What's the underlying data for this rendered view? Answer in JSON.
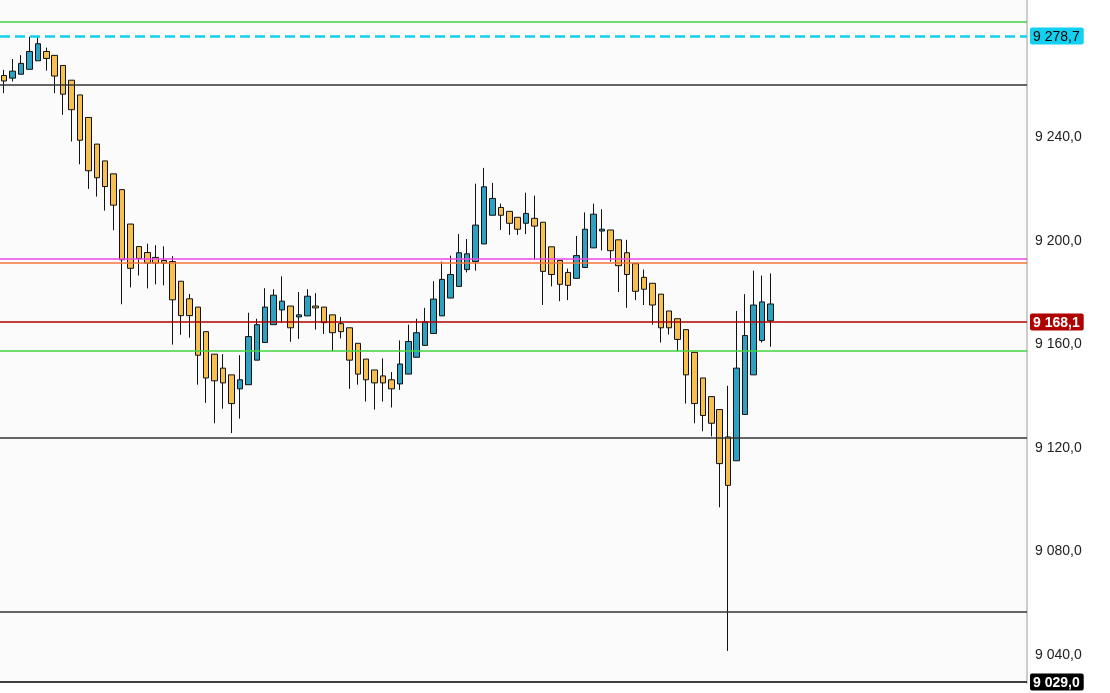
{
  "chart_data": {
    "type": "candlestick",
    "categories": [
      null,
      null,
      null,
      null,
      null,
      null,
      null,
      null,
      null,
      null,
      null,
      null,
      null,
      null,
      null,
      null,
      null,
      null,
      null,
      null,
      null,
      null,
      null,
      null,
      null,
      null,
      null,
      null,
      null,
      null,
      null,
      null,
      null,
      null,
      null,
      null,
      null,
      null,
      null,
      null,
      null,
      null,
      null,
      null,
      null,
      null,
      null,
      null,
      null,
      null,
      null,
      null,
      null,
      null,
      null,
      null,
      null,
      null,
      null,
      null,
      null,
      null,
      null,
      null,
      null,
      null,
      null,
      null,
      null,
      null,
      null,
      null,
      null,
      null,
      null,
      null,
      null,
      null,
      null,
      null,
      null,
      null,
      null,
      null,
      null,
      null,
      null,
      null,
      null,
      null,
      null,
      null,
      null,
      null,
      null,
      null,
      null,
      null,
      null,
      null,
      null,
      null,
      null,
      null,
      null,
      null,
      null,
      null,
      null,
      null,
      null,
      null,
      null,
      null,
      null,
      null,
      null,
      null,
      null,
      null,
      null,
      null
    ],
    "ohlc": [
      [
        9263.4,
        9265.6,
        9256.6,
        9261.3
      ],
      [
        9262.4,
        9269.8,
        9261.1,
        9265.1
      ],
      [
        9263.9,
        9271.3,
        9263.9,
        9268.1
      ],
      [
        9265.8,
        9278.4,
        9265.8,
        9272.7
      ],
      [
        9269.1,
        9278.7,
        9269.1,
        9275.7
      ],
      [
        9272.7,
        9274.2,
        9265.3,
        9270.0
      ],
      [
        9271.2,
        9271.2,
        9256.6,
        9263.2
      ],
      [
        9267.3,
        9267.3,
        9248.2,
        9256.2
      ],
      [
        9261.6,
        9261.6,
        9237.9,
        9250.2
      ],
      [
        9255.9,
        9255.9,
        9229.1,
        9238.4
      ],
      [
        9247.2,
        9247.2,
        9219.6,
        9226.6
      ],
      [
        9236.9,
        9236.9,
        9216.6,
        9223.9
      ],
      [
        9230.4,
        9230.4,
        9211.2,
        9220.5
      ],
      [
        9225.4,
        9225.4,
        9203.6,
        9213.3
      ],
      [
        9219.3,
        9219.3,
        9175.0,
        9192.2
      ],
      [
        9206.0,
        9206.0,
        9181.5,
        9188.9
      ],
      [
        9197.3,
        9197.3,
        9186.1,
        9192.7
      ],
      [
        9195.0,
        9198.4,
        9181.1,
        9190.9
      ],
      [
        9193.1,
        9197.8,
        9182.7,
        9190.9
      ],
      [
        9191.9,
        9197.4,
        9182.3,
        9190.9
      ],
      [
        9191.5,
        9193.6,
        9159.4,
        9176.7
      ],
      [
        9183.9,
        9183.9,
        9163.2,
        9170.6
      ],
      [
        9177.1,
        9179.0,
        9162.1,
        9170.6
      ],
      [
        9173.9,
        9173.9,
        9143.9,
        9155.3
      ],
      [
        9164.4,
        9164.4,
        9136.9,
        9146.5
      ],
      [
        9155.7,
        9155.7,
        9129.0,
        9145.4
      ],
      [
        9150.3,
        9155.7,
        9134.6,
        9144.6
      ],
      [
        9147.7,
        9147.7,
        9125.2,
        9136.6
      ],
      [
        9142.3,
        9155.3,
        9130.8,
        9145.8
      ],
      [
        9143.9,
        9171.7,
        9143.9,
        9162.5
      ],
      [
        9153.4,
        9169.4,
        9153.4,
        9167.1
      ],
      [
        9160.2,
        9181.2,
        9160.2,
        9173.9
      ],
      [
        9167.1,
        9180.8,
        9167.1,
        9178.5
      ],
      [
        9172.8,
        9185.8,
        9167.9,
        9176.2
      ],
      [
        9174.3,
        9174.3,
        9160.5,
        9165.9
      ],
      [
        9170.1,
        9179.7,
        9161.6,
        9170.9
      ],
      [
        9170.5,
        9180.8,
        9170.5,
        9178.1
      ],
      [
        9174.3,
        9179.3,
        9165.2,
        9173.6
      ],
      [
        9173.9,
        9173.9,
        9163.5,
        9167.9
      ],
      [
        9170.9,
        9170.9,
        9156.8,
        9164.0
      ],
      [
        9167.5,
        9170.1,
        9161.8,
        9164.4
      ],
      [
        9165.9,
        9165.9,
        9142.3,
        9153.4
      ],
      [
        9159.9,
        9159.9,
        9143.9,
        9148.0
      ],
      [
        9153.8,
        9153.8,
        9137.4,
        9145.8
      ],
      [
        9149.6,
        9149.6,
        9134.3,
        9144.6
      ],
      [
        9147.3,
        9154.1,
        9137.4,
        9144.6
      ],
      [
        9145.8,
        9148.8,
        9135.1,
        9142.3
      ],
      [
        9144.2,
        9161.0,
        9141.9,
        9151.9
      ],
      [
        9148.0,
        9167.1,
        9148.0,
        9160.6
      ],
      [
        9154.5,
        9169.4,
        9154.5,
        9164.0
      ],
      [
        9159.1,
        9173.6,
        9159.1,
        9168.2
      ],
      [
        9163.7,
        9183.9,
        9163.7,
        9177.0
      ],
      [
        9170.5,
        9191.5,
        9170.5,
        9184.6
      ],
      [
        9177.4,
        9193.8,
        9177.4,
        9186.5
      ],
      [
        9181.9,
        9202.1,
        9181.9,
        9194.9
      ],
      [
        9188.4,
        9200.2,
        9187.3,
        9194.5
      ],
      [
        9191.5,
        9221.6,
        9188.0,
        9205.6
      ],
      [
        9198.3,
        9227.7,
        9198.3,
        9220.4
      ],
      [
        9209.4,
        9221.9,
        9209.4,
        9215.9
      ],
      [
        9212.4,
        9213.9,
        9203.7,
        9209.4
      ],
      [
        9210.9,
        9210.9,
        9201.8,
        9206.3
      ],
      [
        9208.6,
        9208.6,
        9201.8,
        9204.0
      ],
      [
        9206.3,
        9218.1,
        9202.1,
        9210.1
      ],
      [
        9208.2,
        9217.0,
        9192.2,
        9205.2
      ],
      [
        9206.7,
        9206.7,
        9174.7,
        9187.7
      ],
      [
        9197.2,
        9197.2,
        9181.9,
        9186.5
      ],
      [
        9191.9,
        9191.9,
        9176.2,
        9182.7
      ],
      [
        9187.3,
        9188.8,
        9176.6,
        9182.3
      ],
      [
        9185.0,
        9201.4,
        9185.0,
        9193.8
      ],
      [
        9189.2,
        9210.5,
        9189.2,
        9204.0
      ],
      [
        9196.8,
        9213.9,
        9196.8,
        9209.8
      ],
      [
        9203.3,
        9211.7,
        9195.8,
        9204.0
      ],
      [
        9203.7,
        9203.7,
        9191.5,
        9195.7
      ],
      [
        9199.9,
        9199.9,
        9179.7,
        9189.9
      ],
      [
        9194.9,
        9199.9,
        9173.6,
        9186.5
      ],
      [
        9190.7,
        9190.7,
        9176.6,
        9180.0
      ],
      [
        9185.4,
        9188.4,
        9174.7,
        9180.8
      ],
      [
        9183.1,
        9183.1,
        9167.1,
        9174.7
      ],
      [
        9178.9,
        9178.9,
        9160.2,
        9165.9
      ],
      [
        9172.4,
        9172.4,
        9163.3,
        9165.9
      ],
      [
        9169.4,
        9169.4,
        9156.8,
        9161.4
      ],
      [
        9165.2,
        9165.2,
        9136.6,
        9147.7
      ],
      [
        9156.4,
        9156.4,
        9129.0,
        9136.6
      ],
      [
        9146.5,
        9146.5,
        9125.9,
        9132.0
      ],
      [
        9139.3,
        9139.3,
        9123.9,
        9129.0
      ],
      [
        9134.3,
        9134.3,
        9096.5,
        9113.4
      ],
      [
        9123.7,
        9143.5,
        9041.0,
        9105.0
      ],
      [
        9114.5,
        9172.4,
        9114.5,
        9150.3
      ],
      [
        9132.4,
        9178.9,
        9132.4,
        9162.9
      ],
      [
        9147.7,
        9188.0,
        9147.7,
        9174.7
      ],
      [
        9161.0,
        9186.1,
        9160.2,
        9175.9
      ],
      [
        9168.6,
        9186.9,
        9158.6,
        9175.1
      ],
      null,
      null,
      null,
      null,
      null,
      null,
      null,
      null,
      null,
      null,
      null,
      null,
      null,
      null,
      null,
      null,
      null,
      null,
      null,
      null,
      null,
      null,
      null,
      null,
      null,
      null,
      null,
      null,
      null,
      null
    ],
    "colors": [
      "#f7bf50",
      "#2ea0c2",
      "#2ea0c2",
      "#2ea0c2",
      "#2ea0c2",
      "#f7bf50",
      "#f7bf50",
      "#f7bf50",
      "#f7bf50",
      "#f7bf50",
      "#f7bf50",
      "#f7bf50",
      "#f7bf50",
      "#f7bf50",
      "#f7bf50",
      "#f7bf50",
      "#f7bf50",
      "#f7bf50",
      "#f7bf50",
      "#f7bf50",
      "#f7bf50",
      "#f7bf50",
      "#f7bf50",
      "#f7bf50",
      "#f7bf50",
      "#f7bf50",
      "#f7bf50",
      "#f7bf50",
      "#2ea0c2",
      "#2ea0c2",
      "#2ea0c2",
      "#2ea0c2",
      "#2ea0c2",
      "#2ea0c2",
      "#f7bf50",
      "#2ea0c2",
      "#2ea0c2",
      "#f7bf50",
      "#f7bf50",
      "#f7bf50",
      "#f7bf50",
      "#f7bf50",
      "#f7bf50",
      "#f7bf50",
      "#f7bf50",
      "#f7bf50",
      "#f7bf50",
      "#2ea0c2",
      "#2ea0c2",
      "#2ea0c2",
      "#2ea0c2",
      "#2ea0c2",
      "#2ea0c2",
      "#2ea0c2",
      "#2ea0c2",
      "#2ea0c2",
      "#2ea0c2",
      "#2ea0c2",
      "#2ea0c2",
      "#f7bf50",
      "#f7bf50",
      "#f7bf50",
      "#2ea0c2",
      "#f7bf50",
      "#f7bf50",
      "#f7bf50",
      "#f7bf50",
      "#f7bf50",
      "#2ea0c2",
      "#2ea0c2",
      "#2ea0c2",
      "#2ea0c2",
      "#f7bf50",
      "#f7bf50",
      "#f7bf50",
      "#f7bf50",
      "#f7bf50",
      "#f7bf50",
      "#f7bf50",
      "#f7bf50",
      "#f7bf50",
      "#f7bf50",
      "#f7bf50",
      "#f7bf50",
      "#f7bf50",
      "#f7bf50",
      "#f7bf50",
      "#2ea0c2",
      "#2ea0c2",
      "#2ea0c2",
      "#2ea0c2",
      "#2ea0c2",
      null,
      null,
      null,
      null,
      null,
      null,
      null,
      null,
      null,
      null,
      null,
      null,
      null,
      null,
      null,
      null,
      null,
      null,
      null,
      null,
      null,
      null,
      null,
      null,
      null,
      null,
      null,
      null,
      null,
      null
    ],
    "ylim": [
      9028.6,
      9292.6
    ],
    "yticks": [
      {
        "value": 9040,
        "label": "9 040,0"
      },
      {
        "value": 9080,
        "label": "9 080,0"
      },
      {
        "value": 9120,
        "label": "9 120,0"
      },
      {
        "value": 9160,
        "label": "9 160,0"
      },
      {
        "value": 9200,
        "label": "9 200,0"
      },
      {
        "value": 9240,
        "label": "9 240,0"
      }
    ],
    "ref_lines": [
      {
        "axis": "y",
        "value": 9284.2,
        "color": "#3fd63f"
      },
      {
        "axis": "y",
        "value": 9278.7,
        "label": "9 278,7",
        "color": "#12d0f0",
        "line_style": "dashed"
      },
      {
        "axis": "y",
        "value": 9260,
        "color": "#333333"
      },
      {
        "axis": "y",
        "value": 9192.4,
        "color": "#ee44ee"
      },
      {
        "axis": "y",
        "value": 9191.2,
        "color": "#f5743a"
      },
      {
        "axis": "y",
        "value": 9168.1,
        "label": "9 168,1",
        "color": "#b00000"
      },
      {
        "axis": "y",
        "value": 9157,
        "color": "#3fd63f"
      },
      {
        "axis": "y",
        "value": 9123.4,
        "color": "#333333"
      },
      {
        "axis": "y",
        "value": 9056,
        "color": "#333333"
      },
      {
        "axis": "y",
        "value": 9029.0,
        "label": "9 029,0",
        "color": "#000000"
      }
    ],
    "grid": false,
    "tick_labels": "y"
  }
}
